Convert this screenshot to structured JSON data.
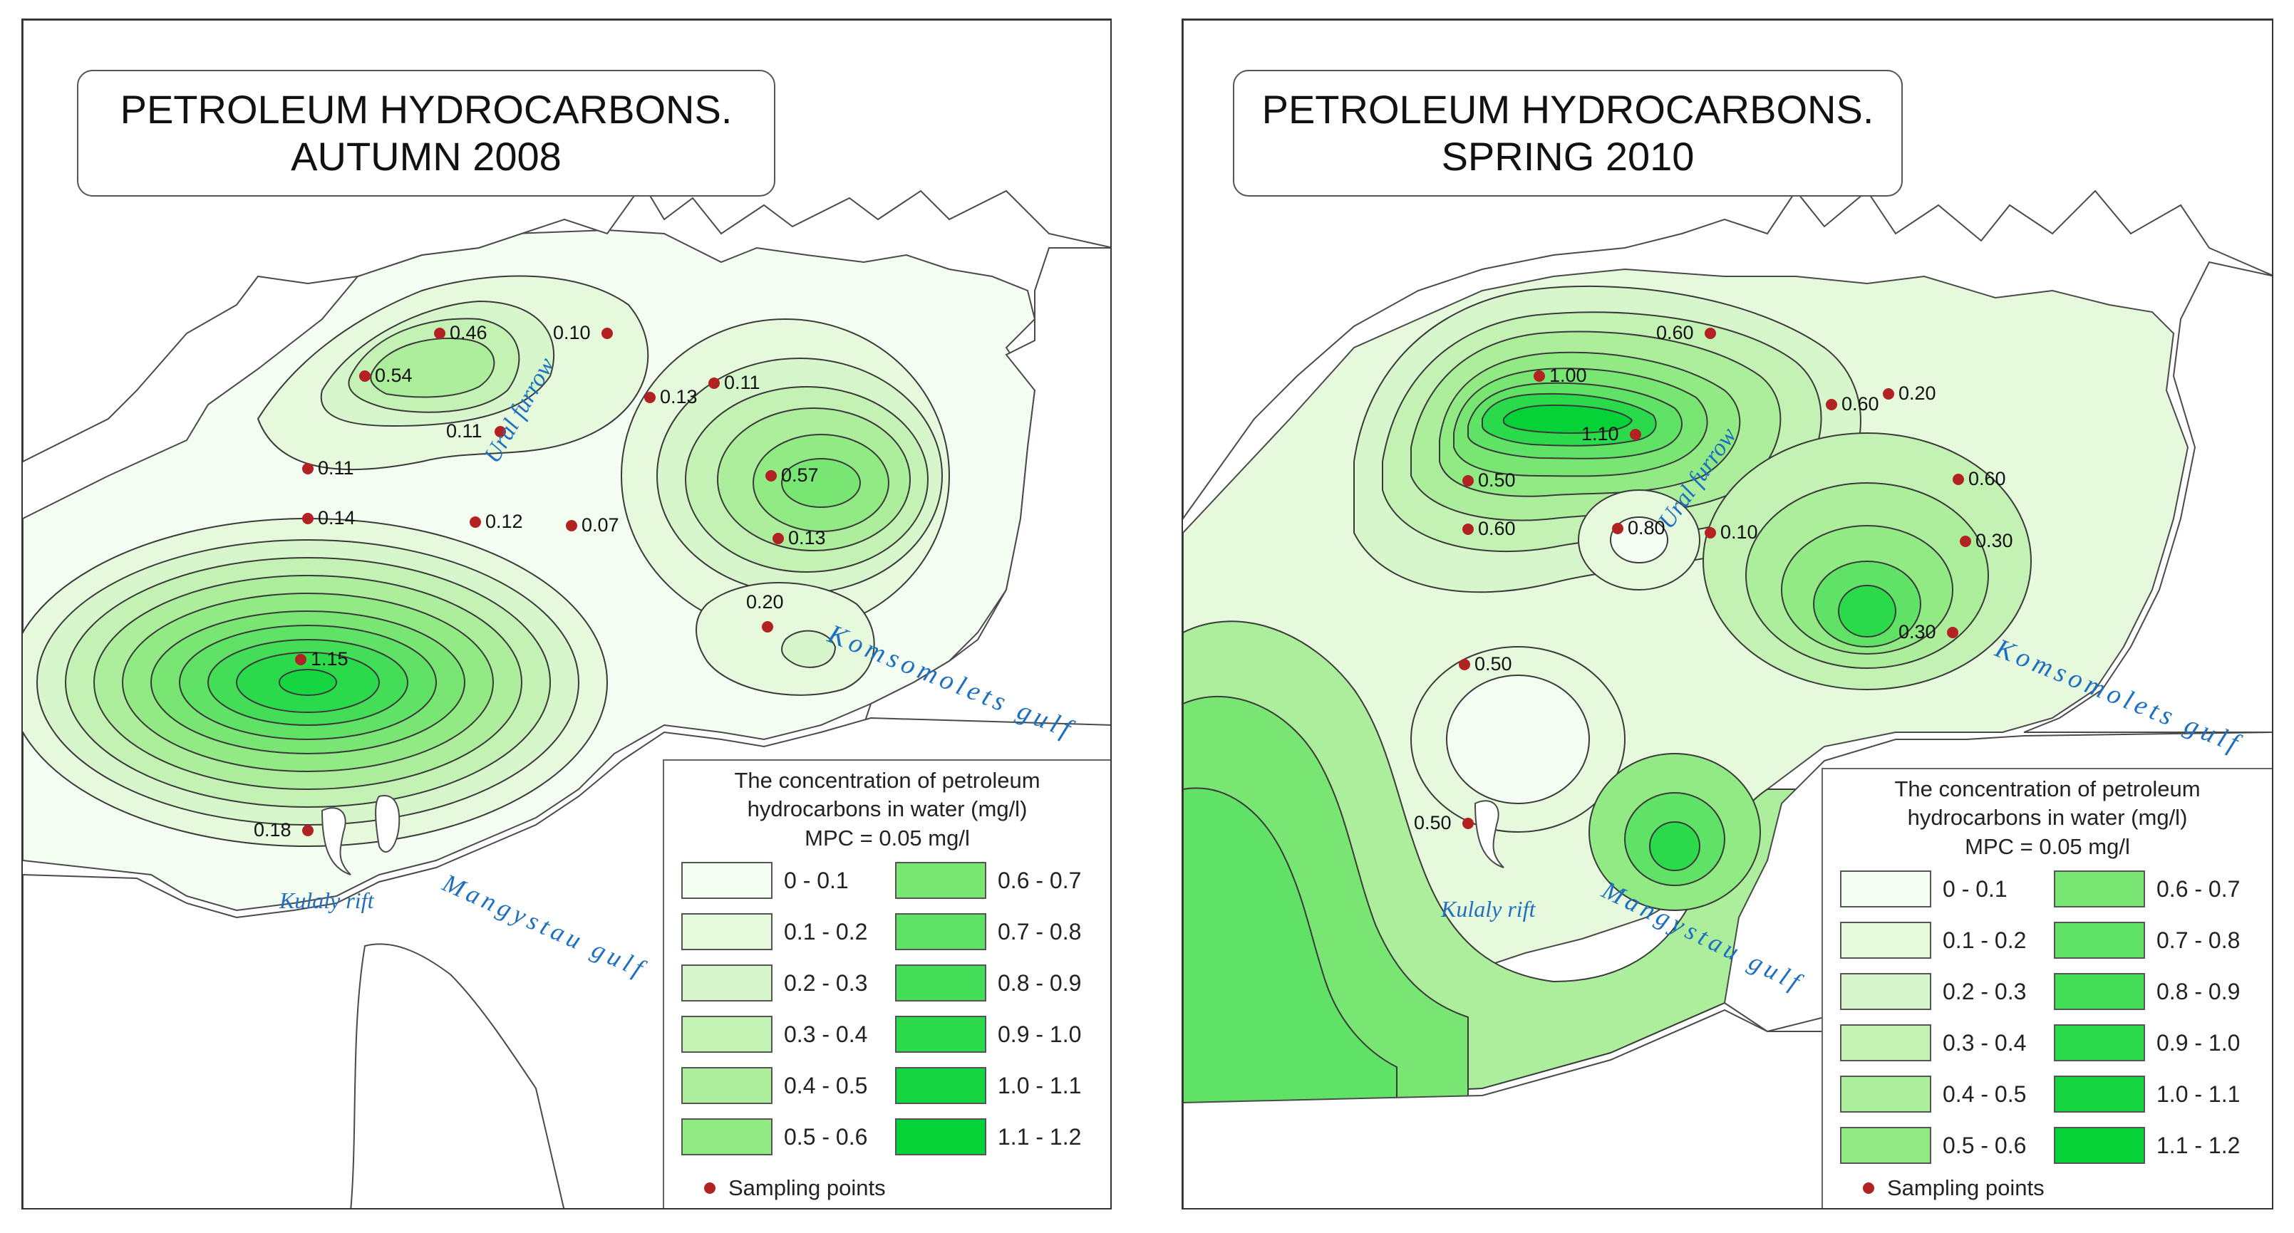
{
  "maps": [
    {
      "title_line1": "PETROLEUM HYDROCARBONS.",
      "title_line2": "AUTUMN 2008",
      "points": [
        {
          "label": "0.46"
        },
        {
          "label": "0.54"
        },
        {
          "label": "0.10"
        },
        {
          "label": "0.13"
        },
        {
          "label": "0.11"
        },
        {
          "label": "0.11"
        },
        {
          "label": "0.57"
        },
        {
          "label": "0.11"
        },
        {
          "label": "0.14"
        },
        {
          "label": "0.12"
        },
        {
          "label": "0.07"
        },
        {
          "label": "0.13"
        },
        {
          "label": "0.20"
        },
        {
          "label": "1.15"
        },
        {
          "label": "0.18"
        }
      ],
      "place_labels": [
        "Ural furrow",
        "Komsomolets gulf",
        "Kulaly rift",
        "Mangystau gulf"
      ]
    },
    {
      "title_line1": "PETROLEUM HYDROCARBONS.",
      "title_line2": "SPRING 2010",
      "points": [
        {
          "label": "0.60"
        },
        {
          "label": "1.00"
        },
        {
          "label": "0.60"
        },
        {
          "label": "0.20"
        },
        {
          "label": "1.10"
        },
        {
          "label": "0.50"
        },
        {
          "label": "0.60"
        },
        {
          "label": "0.60"
        },
        {
          "label": "0.80"
        },
        {
          "label": "0.10"
        },
        {
          "label": "0.30"
        },
        {
          "label": "0.30"
        },
        {
          "label": "0.50"
        },
        {
          "label": "0.50"
        }
      ],
      "place_labels": [
        "Ural furrow",
        "Komsomolets gulf",
        "Kulaly rift",
        "Mangystau gulf"
      ]
    }
  ],
  "legend": {
    "heading_line1": "The concentration of petroleum",
    "heading_line2": "hydrocarbons in water (mg/l)",
    "heading_line3": "MPC = 0.05 mg/l",
    "classes": [
      {
        "label": "0 - 0.1",
        "color": "#f4fdf1"
      },
      {
        "label": "0.1 - 0.2",
        "color": "#e6f9dc"
      },
      {
        "label": "0.2 - 0.3",
        "color": "#d8f6cb"
      },
      {
        "label": "0.3 - 0.4",
        "color": "#c4f2b4"
      },
      {
        "label": "0.4 - 0.5",
        "color": "#acee9c"
      },
      {
        "label": "0.5 - 0.6",
        "color": "#92ea85"
      },
      {
        "label": "0.6 - 0.7",
        "color": "#79e674"
      },
      {
        "label": "0.7 - 0.8",
        "color": "#5fe265"
      },
      {
        "label": "0.8 - 0.9",
        "color": "#44dd57"
      },
      {
        "label": "0.9 - 1.0",
        "color": "#2bda4b"
      },
      {
        "label": "1.0 - 1.1",
        "color": "#15d640"
      },
      {
        "label": "1.1 - 1.2",
        "color": "#05d236"
      }
    ],
    "sampling_label": "Sampling points",
    "sampling_color": "#b22222"
  },
  "colors": {
    "land": "#ffffff",
    "coast": "#4a4a4a",
    "contour": "#3a3a3a",
    "place_label": "#1e6fc0"
  }
}
